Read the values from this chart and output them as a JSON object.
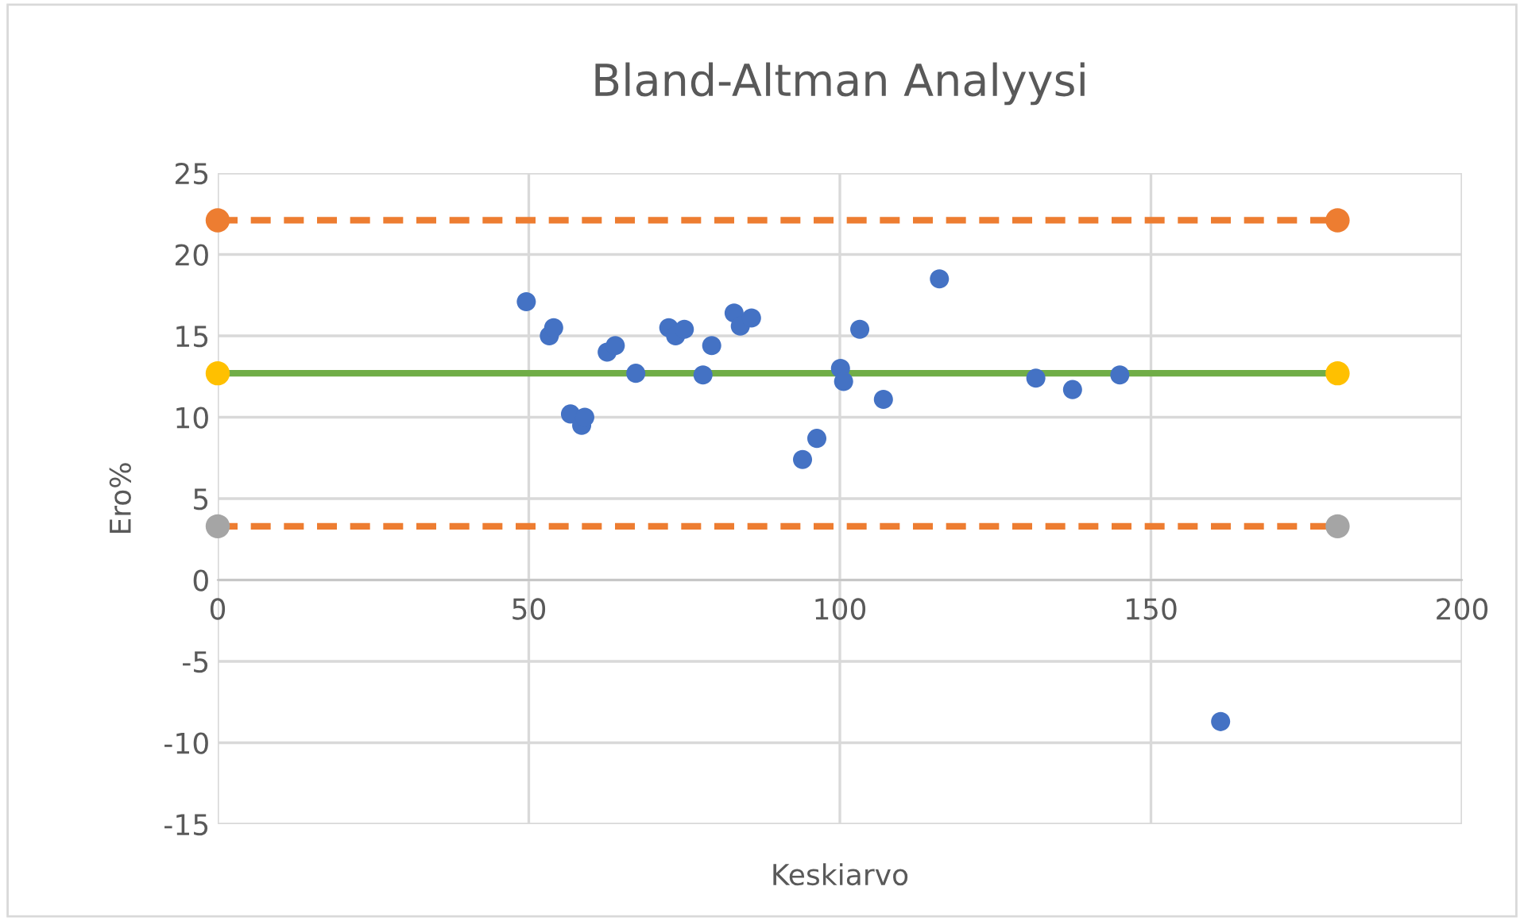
{
  "chart_data": {
    "type": "scatter",
    "title": "Bland-Altman Analyysi",
    "xlabel": "Keskiarvo",
    "ylabel": "Ero%",
    "xlim": [
      0,
      200
    ],
    "xticks": [
      0,
      50,
      100,
      150,
      200
    ],
    "ylim": [
      -15,
      25
    ],
    "yticks": [
      -15,
      -10,
      -5,
      0,
      5,
      10,
      15,
      20,
      25
    ],
    "grid": true,
    "marker": "circle",
    "series": [
      {
        "color": "#4472c4",
        "x": [
          49.6,
          53.3,
          54.0,
          56.7,
          58.5,
          59.0,
          62.6,
          63.9,
          67.2,
          72.5,
          73.6,
          75.0,
          78.0,
          79.4,
          83.0,
          84.0,
          85.8,
          94.0,
          96.3,
          100.1,
          100.6,
          103.2,
          107.0,
          116.0,
          131.5,
          137.4,
          145.0,
          161.2
        ],
        "values": [
          17.1,
          15.0,
          15.5,
          10.2,
          9.5,
          10.0,
          14.0,
          14.4,
          12.7,
          15.5,
          15.0,
          15.4,
          12.6,
          14.4,
          16.4,
          15.6,
          16.1,
          7.4,
          8.7,
          13.0,
          12.2,
          15.4,
          11.1,
          18.5,
          12.4,
          11.7,
          12.6,
          -8.7
        ]
      },
      {
        "type": "line",
        "color": "#ed7d31",
        "colors": [
          "#ed7d31",
          "#ed7d31"
        ],
        "line_style": "dashed",
        "x": [
          0,
          180
        ],
        "values": [
          22.1,
          22.1
        ]
      },
      {
        "type": "line",
        "color": "#70ad47",
        "colors": [
          "#ffc000",
          "#ffc000"
        ],
        "line_style": "solid",
        "x": [
          0,
          180
        ],
        "values": [
          12.7,
          12.7
        ]
      },
      {
        "type": "line",
        "color": "#ed7d31",
        "colors": [
          "#a5a5a5",
          "#a5a5a5"
        ],
        "line_style": "dashed",
        "x": [
          0,
          180
        ],
        "values": [
          3.3,
          3.3
        ]
      }
    ]
  }
}
